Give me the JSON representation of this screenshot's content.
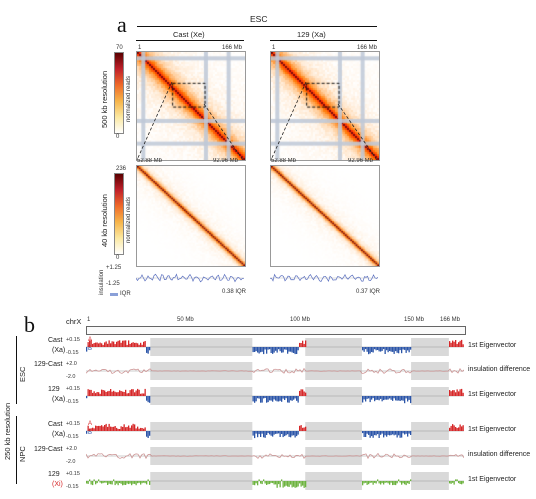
{
  "panel_a": {
    "letter": "a",
    "group_label": "ESC",
    "col1_label": "Cast (Xe)",
    "col2_label": "129 (Xa)",
    "row1_resolution": "500 kb resolution",
    "row2_resolution": "40 kb resolution",
    "colorbar1_max": "70",
    "colorbar1_min": "0",
    "colorbar2_max": "236",
    "colorbar2_min": "0",
    "colorbar_label": "normalized reads",
    "top_left_tick": "1",
    "top_right_tick": "166 Mb",
    "zoom_left_tick": "52.88 Mb",
    "zoom_right_tick": "92.96 Mb",
    "insulation_label": "insulation",
    "insulation_max": "+1.25",
    "insulation_min": "-1.25",
    "iqr_label": "IQR",
    "iqr_left": "0.38 IQR",
    "iqr_right": "0.37 IQR"
  },
  "panel_b": {
    "letter": "b",
    "chrom": "chrX",
    "ticks": [
      "1",
      "50 Mb",
      "100 Mb",
      "150 Mb",
      "166 Mb"
    ],
    "resolution": "250 kb resolution",
    "groups": [
      "ESC",
      "NPC"
    ],
    "tracks": [
      {
        "name": "Cast",
        "sub": "(Xa)",
        "range_hi": "+0.15",
        "range_lo": "-0.15",
        "label": "1st Eigenvector",
        "kind": "eigen"
      },
      {
        "name": "129-Cast",
        "sub": "",
        "range_hi": "+2.0",
        "range_lo": "-2.0",
        "label": "insulation difference",
        "kind": "insul"
      },
      {
        "name": "129",
        "sub": "(Xa)",
        "range_hi": "+0.15",
        "range_lo": "-0.15",
        "label": "1st Eigenvector",
        "kind": "eigen"
      },
      {
        "name": "Cast",
        "sub": "(Xa)",
        "range_hi": "+0.15",
        "range_lo": "-0.15",
        "label": "1st Eigenvector",
        "kind": "eigen"
      },
      {
        "name": "129-Cast",
        "sub": "",
        "range_hi": "+2.0",
        "range_lo": "-2.0",
        "label": "insulation difference",
        "kind": "insul"
      },
      {
        "name": "129",
        "sub": "(Xi)",
        "range_hi": "+0.15",
        "range_lo": "-0.15",
        "label": "1st Eigenvector",
        "kind": "xi"
      }
    ],
    "side_marks": [
      "A",
      "B"
    ],
    "colors": {
      "a_compartment": "#d62728",
      "b_compartment": "#2b55a8",
      "xi_track": "#6db33f",
      "insulation": "#c98b8b",
      "gap": "#d9d9d9"
    }
  }
}
